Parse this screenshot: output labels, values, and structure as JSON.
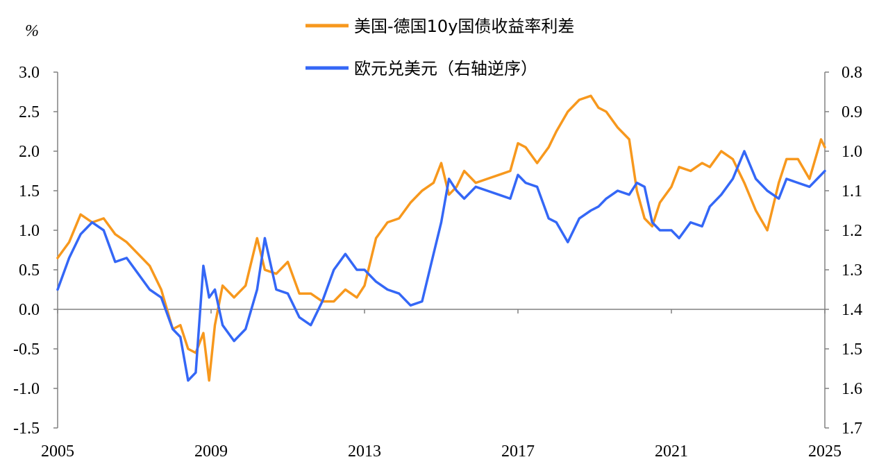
{
  "chart_data": {
    "type": "line",
    "left_unit_label": "%",
    "legend": [
      {
        "label": "美国-德国10y国债收益率利差",
        "color": "#F7981D"
      },
      {
        "label": "欧元兑美元（右轴逆序）",
        "color": "#3467F6"
      }
    ],
    "x_ticks": [
      "2005",
      "2009",
      "2013",
      "2017",
      "2021",
      "2025"
    ],
    "x_range": [
      2005,
      2025
    ],
    "left_axis": {
      "range": [
        -1.5,
        3.0
      ],
      "ticks": [
        "3.0",
        "2.5",
        "2.0",
        "1.5",
        "1.0",
        "0.5",
        "0.0",
        "-0.5",
        "-1.0",
        "-1.5"
      ]
    },
    "right_axis": {
      "range": [
        0.8,
        1.7
      ],
      "inverted": true,
      "ticks": [
        "0.8",
        "0.9",
        "1.0",
        "1.1",
        "1.2",
        "1.3",
        "1.4",
        "1.5",
        "1.6",
        "1.7"
      ]
    },
    "series": [
      {
        "name": "美国-德国10y国债收益率利差",
        "axis": "left",
        "color": "#F7981D",
        "x": [
          2005.0,
          2005.3,
          2005.6,
          2005.9,
          2006.2,
          2006.5,
          2006.8,
          2007.1,
          2007.4,
          2007.7,
          2008.0,
          2008.2,
          2008.4,
          2008.6,
          2008.8,
          2008.95,
          2009.1,
          2009.3,
          2009.6,
          2009.9,
          2010.2,
          2010.4,
          2010.7,
          2011.0,
          2011.3,
          2011.6,
          2011.9,
          2012.2,
          2012.5,
          2012.8,
          2013.0,
          2013.3,
          2013.6,
          2013.9,
          2014.2,
          2014.5,
          2014.8,
          2015.0,
          2015.2,
          2015.4,
          2015.6,
          2015.9,
          2016.2,
          2016.5,
          2016.8,
          2017.0,
          2017.2,
          2017.5,
          2017.8,
          2018.0,
          2018.3,
          2018.6,
          2018.9,
          2019.1,
          2019.3,
          2019.6,
          2019.9,
          2020.1,
          2020.3,
          2020.5,
          2020.7,
          2021.0,
          2021.2,
          2021.5,
          2021.8,
          2022.0,
          2022.3,
          2022.6,
          2022.9,
          2023.2,
          2023.5,
          2023.8,
          2024.0,
          2024.3,
          2024.6,
          2024.9,
          2025.0
        ],
        "values": [
          0.65,
          0.85,
          1.2,
          1.1,
          1.15,
          0.95,
          0.85,
          0.7,
          0.55,
          0.25,
          -0.25,
          -0.2,
          -0.5,
          -0.55,
          -0.3,
          -0.9,
          -0.2,
          0.3,
          0.15,
          0.3,
          0.9,
          0.5,
          0.45,
          0.6,
          0.2,
          0.2,
          0.1,
          0.1,
          0.25,
          0.15,
          0.3,
          0.9,
          1.1,
          1.15,
          1.35,
          1.5,
          1.6,
          1.85,
          1.45,
          1.55,
          1.75,
          1.6,
          1.65,
          1.7,
          1.75,
          2.1,
          2.05,
          1.85,
          2.05,
          2.25,
          2.5,
          2.65,
          2.7,
          2.55,
          2.5,
          2.3,
          2.15,
          1.5,
          1.15,
          1.05,
          1.35,
          1.55,
          1.8,
          1.75,
          1.85,
          1.8,
          2.0,
          1.9,
          1.6,
          1.25,
          1.0,
          1.6,
          1.9,
          1.9,
          1.65,
          2.15,
          2.05
        ]
      },
      {
        "name": "欧元兑美元（右轴逆序）",
        "axis": "right",
        "color": "#3467F6",
        "x": [
          2005.0,
          2005.3,
          2005.6,
          2005.9,
          2006.2,
          2006.5,
          2006.8,
          2007.1,
          2007.4,
          2007.7,
          2008.0,
          2008.2,
          2008.4,
          2008.6,
          2008.8,
          2008.95,
          2009.1,
          2009.3,
          2009.6,
          2009.9,
          2010.2,
          2010.4,
          2010.7,
          2011.0,
          2011.3,
          2011.6,
          2011.9,
          2012.2,
          2012.5,
          2012.8,
          2013.0,
          2013.3,
          2013.6,
          2013.9,
          2014.2,
          2014.5,
          2014.8,
          2015.0,
          2015.2,
          2015.4,
          2015.6,
          2015.9,
          2016.2,
          2016.5,
          2016.8,
          2017.0,
          2017.2,
          2017.5,
          2017.8,
          2018.0,
          2018.3,
          2018.6,
          2018.9,
          2019.1,
          2019.3,
          2019.6,
          2019.9,
          2020.1,
          2020.3,
          2020.5,
          2020.7,
          2021.0,
          2021.2,
          2021.5,
          2021.8,
          2022.0,
          2022.3,
          2022.6,
          2022.9,
          2023.2,
          2023.5,
          2023.8,
          2024.0,
          2024.3,
          2024.6,
          2024.9,
          2025.0
        ],
        "values": [
          1.35,
          1.27,
          1.21,
          1.18,
          1.2,
          1.28,
          1.27,
          1.31,
          1.35,
          1.37,
          1.45,
          1.47,
          1.58,
          1.56,
          1.29,
          1.37,
          1.35,
          1.44,
          1.48,
          1.45,
          1.35,
          1.22,
          1.35,
          1.36,
          1.42,
          1.44,
          1.38,
          1.3,
          1.26,
          1.3,
          1.3,
          1.33,
          1.35,
          1.36,
          1.39,
          1.38,
          1.26,
          1.18,
          1.07,
          1.1,
          1.12,
          1.09,
          1.1,
          1.11,
          1.12,
          1.06,
          1.08,
          1.09,
          1.17,
          1.18,
          1.23,
          1.17,
          1.15,
          1.14,
          1.12,
          1.1,
          1.11,
          1.08,
          1.09,
          1.18,
          1.2,
          1.2,
          1.22,
          1.18,
          1.19,
          1.14,
          1.11,
          1.07,
          1.0,
          1.07,
          1.1,
          1.12,
          1.07,
          1.08,
          1.09,
          1.06,
          1.05
        ]
      }
    ]
  }
}
